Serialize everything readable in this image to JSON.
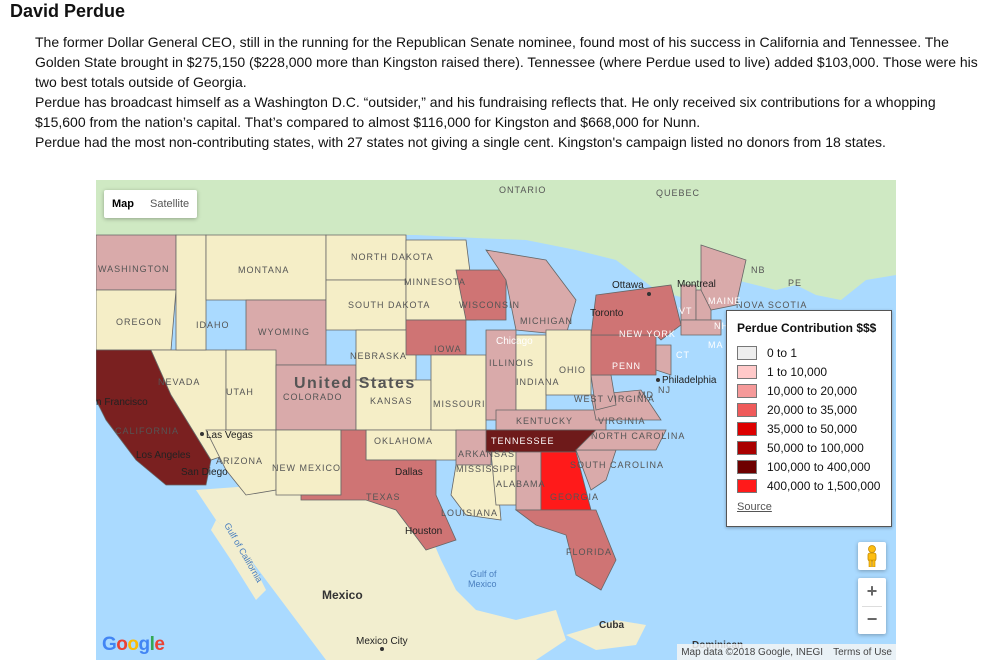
{
  "heading": "David Perdue",
  "paragraphs": [
    "The former Dollar General CEO, still in the running for the Republican Senate nominee, found most of his success in California and Tennessee. The Golden State brought in $275,150 ($228,000 more than Kingston raised there). Tennessee (where Perdue used to live) added $103,000. Those were his two best totals outside of Georgia.",
    "Perdue has broadcast himself as a Washington D.C. “outsider,” and his fundraising reflects that. He only received six contributions for a whopping $15,600 from the nation’s capital. That’s compared to almost $116,000 for Kingston and $668,000 for Nunn.",
    "Perdue had the most non-contributing states, with 27 states not giving a single cent. Kingston's campaign listed no donors from 18 states."
  ],
  "map": {
    "map_type": {
      "map": "Map",
      "satellite": "Satellite",
      "selected": "Map"
    },
    "legend": {
      "title": "Perdue Contribution $$$",
      "bins": [
        {
          "label": "0 to 1",
          "color": "#eeeeee"
        },
        {
          "label": "1 to 10,000",
          "color": "#ffc9c9"
        },
        {
          "label": "10,000 to 20,000",
          "color": "#f59999"
        },
        {
          "label": "20,000 to 35,000",
          "color": "#ef5a5a"
        },
        {
          "label": "35,000 to 50,000",
          "color": "#dd0000"
        },
        {
          "label": "50,000 to 100,000",
          "color": "#aa0000"
        },
        {
          "label": "100,000 to 400,000",
          "color": "#6e0000"
        },
        {
          "label": "400,000 to 1,500,000",
          "color": "#ff1a1a"
        }
      ],
      "source_link": "Source"
    },
    "state_labels": {
      "washington": "WASHINGTON",
      "montana": "MONTANA",
      "north_dakota": "NORTH DAKOTA",
      "minnesota": "MINNESOTA",
      "oregon": "OREGON",
      "idaho": "IDAHO",
      "wyoming": "WYOMING",
      "south_dakota": "SOUTH DAKOTA",
      "wisconsin": "WISCONSIN",
      "michigan": "MICHIGAN",
      "new_york": "NEW YORK",
      "iowa": "IOWA",
      "nebraska": "NEBRASKA",
      "nevada": "NEVADA",
      "utah": "UTAH",
      "colorado": "COLORADO",
      "kansas": "KANSAS",
      "missouri": "MISSOURI",
      "illinois": "ILLINOIS",
      "indiana": "INDIANA",
      "ohio": "OHIO",
      "penn": "PENN",
      "west_virginia": "WEST VIRGINIA",
      "virginia": "VIRGINIA",
      "kentucky": "KENTUCKY",
      "california": "CALIFORNIA",
      "arizona": "ARIZONA",
      "new_mexico": "NEW MEXICO",
      "oklahoma": "OKLAHOMA",
      "arkansas": "ARKANSAS",
      "tennessee": "TENNESSEE",
      "north_carolina": "NORTH CAROLINA",
      "south_carolina": "SOUTH CAROLINA",
      "mississippi": "MISSISSIPPI",
      "alabama": "ALABAMA",
      "georgia": "GEORGIA",
      "texas": "TEXAS",
      "louisiana": "LOUISIANA",
      "florida": "FLORIDA",
      "ontario": "ONTARIO",
      "quebec": "QUEBEC",
      "nb": "NB",
      "pe": "PE",
      "nova_scotia": "NOVA SCOTIA",
      "maine": "MAINE",
      "vt": "VT",
      "nh": "NH",
      "ma": "MA",
      "ct": "CT",
      "nj": "NJ",
      "md": "MD"
    },
    "place_labels": {
      "united_states": "United States",
      "mexico": "Mexico",
      "cuba": "Cuba",
      "dominican": "Dominican",
      "gulf_mexico_1": "Gulf of",
      "gulf_mexico_2": "Mexico",
      "gulf_california": "Gulf of California"
    },
    "city_labels": {
      "ottawa": "Ottawa",
      "montreal": "Montreal",
      "toronto": "Toronto",
      "chicago": "Chicago",
      "philadelphia": "Philadelphia",
      "san_francisco": "n Francisco",
      "las_vegas": "Las Vegas",
      "los_angeles": "Los Angeles",
      "san_diego": "San Diego",
      "dallas": "Dallas",
      "houston": "Houston",
      "mexico_city": "Mexico City"
    },
    "controls": {
      "zoom_in": "+",
      "zoom_out": "−"
    },
    "attribution": {
      "google_logo": "Google",
      "map_data": "Map data ©2018 Google, INEGI",
      "terms": "Terms of Use"
    },
    "colors": {
      "water": "#aadaff",
      "canada": "#cfe9c3",
      "mexico": "#f2eecf",
      "border": "#666666",
      "state_empty": "#f5eec7",
      "state_light": "#d9aaaa",
      "state_mid": "#cf7474",
      "state_dark": "#7a2020",
      "georgia": "#ff1a1a"
    }
  }
}
